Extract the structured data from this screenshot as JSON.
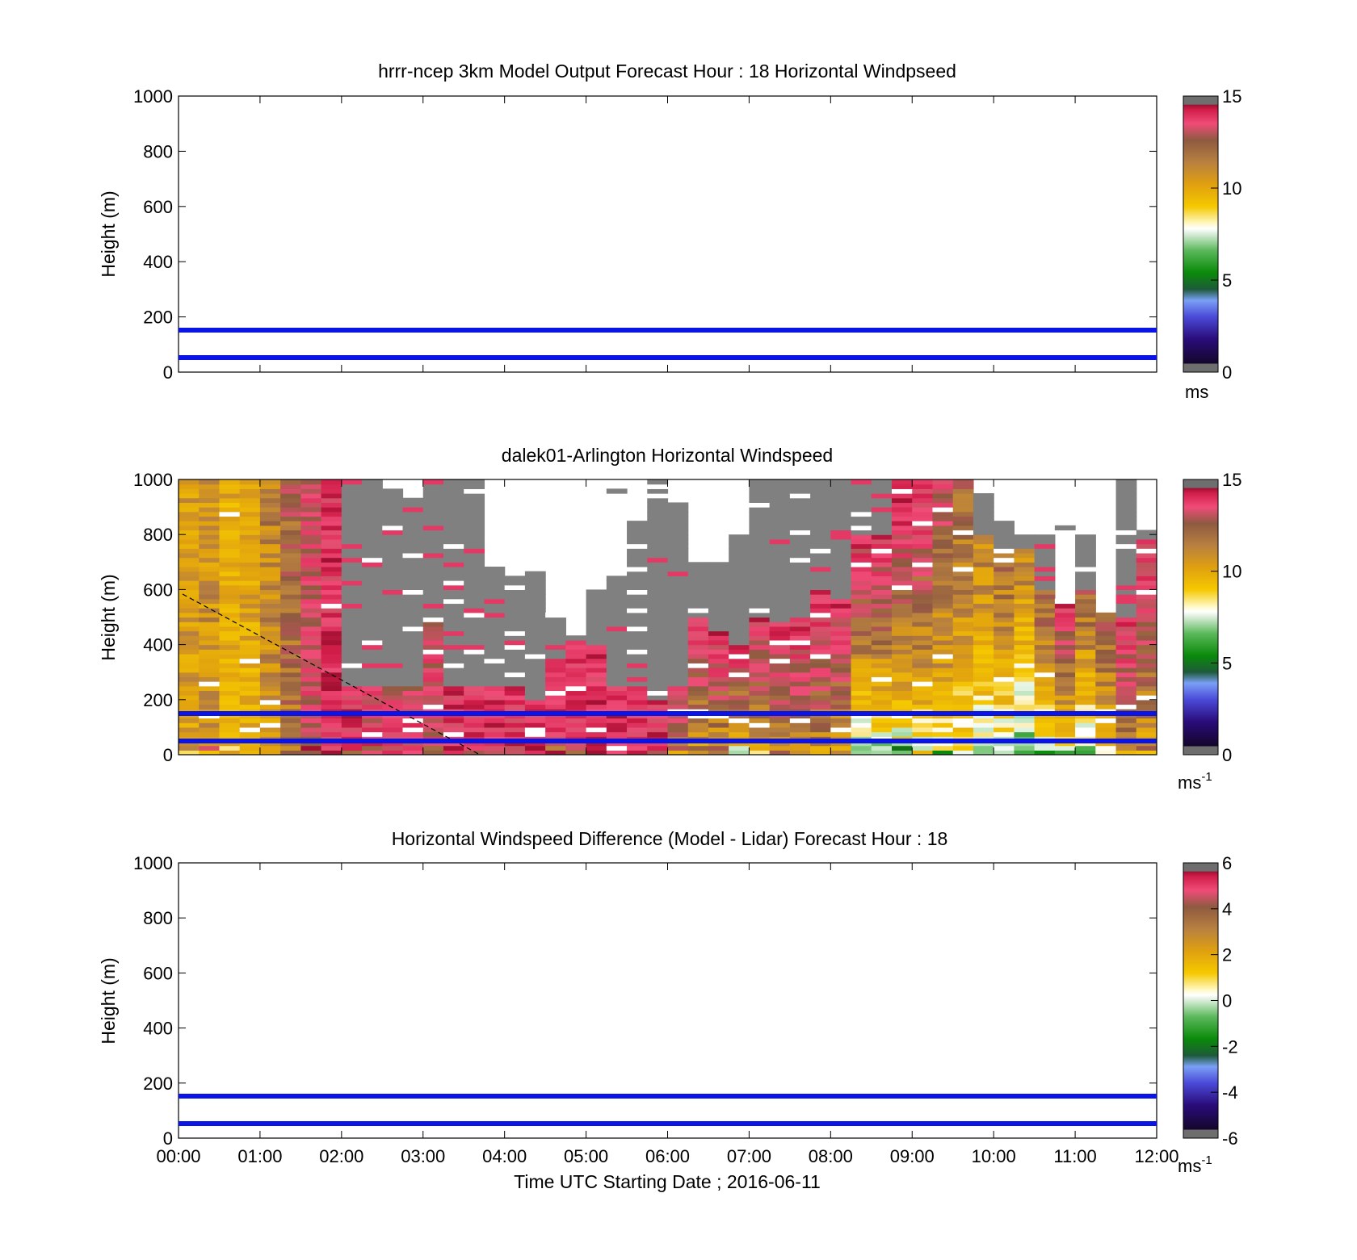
{
  "colors": {
    "guide_line": "#0a14e6",
    "missing": "#808080",
    "speed_colormap": [
      "#6e6e6e",
      "#1e0a3c",
      "#3a1aa8",
      "#6a8cf0",
      "#1a7a1a",
      "#0a8c0a",
      "#8fd08f",
      "#ffffff",
      "#f5c400",
      "#e0a000",
      "#c08a3a",
      "#8e5a40",
      "#f0507a",
      "#c0143c",
      "#6e6e6e"
    ]
  },
  "panels": [
    {
      "title": "hrrr-ncep 3km Model Output   Forecast Hour : 18 Horizontal Windpseed",
      "ylabel": "Height (m)",
      "yticks": [
        "0",
        "200",
        "400",
        "600",
        "800",
        "1000"
      ],
      "cbar_ticks": [
        "0",
        "5",
        "10",
        "15"
      ],
      "cbar_unit": "ms",
      "cbar_unit_sup": "",
      "has_data": false
    },
    {
      "title": "dalek01-Arlington  Horizontal Windspeed",
      "ylabel": "Height (m)",
      "yticks": [
        "0",
        "200",
        "400",
        "600",
        "800",
        "1000"
      ],
      "cbar_ticks": [
        "0",
        "5",
        "10",
        "15"
      ],
      "cbar_unit": "ms",
      "cbar_unit_sup": "-1",
      "has_data": true
    },
    {
      "title": "Horizontal Windspeed Difference (Model - Lidar) Forecast Hour : 18",
      "ylabel": "Height (m)",
      "yticks": [
        "0",
        "200",
        "400",
        "600",
        "800",
        "1000"
      ],
      "cbar_ticks": [
        "-6",
        "-4",
        "-2",
        "0",
        "2",
        "4",
        "6"
      ],
      "cbar_unit": "ms",
      "cbar_unit_sup": "-1",
      "has_data": false
    }
  ],
  "xaxis": {
    "ticks": [
      "00:00",
      "01:00",
      "02:00",
      "03:00",
      "04:00",
      "05:00",
      "06:00",
      "07:00",
      "08:00",
      "09:00",
      "10:00",
      "11:00",
      "12:00"
    ],
    "label": "Time UTC  Starting Date ; 2016-06-11"
  },
  "chart_data": [
    {
      "type": "heatmap",
      "title": "hrrr-ncep 3km Model Output   Forecast Hour : 18 Horizontal Windpseed",
      "ylabel": "Height (m)",
      "xlabel": "",
      "xlim": [
        "00:00",
        "12:00"
      ],
      "ylim": [
        0,
        1000
      ],
      "clim": [
        0,
        15
      ],
      "colorbar_label": "ms",
      "reference_lines_height_m": [
        150,
        50
      ],
      "values": []
    },
    {
      "type": "heatmap",
      "title": "dalek01-Arlington  Horizontal Windspeed",
      "ylabel": "Height (m)",
      "xlabel": "",
      "xlim": [
        "00:00",
        "12:00"
      ],
      "ylim": [
        0,
        1000
      ],
      "clim": [
        0,
        15
      ],
      "colorbar_label": "ms-1",
      "reference_lines_height_m": [
        150,
        50
      ],
      "dashed_line": {
        "x": [
          "00:00",
          "03:45"
        ],
        "y": [
          580,
          0
        ]
      },
      "x": [
        "00:07",
        "00:22",
        "00:37",
        "00:52",
        "01:07",
        "01:22",
        "01:37",
        "01:52",
        "02:07",
        "02:22",
        "02:37",
        "02:52",
        "03:07",
        "03:22",
        "03:37",
        "03:52",
        "04:07",
        "04:22",
        "04:37",
        "04:52",
        "05:07",
        "05:22",
        "05:37",
        "05:52",
        "06:07",
        "06:22",
        "06:37",
        "06:52",
        "07:07",
        "07:22",
        "07:37",
        "07:52",
        "08:07",
        "08:22",
        "08:37",
        "08:52",
        "09:07",
        "09:22",
        "09:37",
        "09:52",
        "10:07",
        "10:22",
        "10:37",
        "10:52",
        "11:07",
        "11:22",
        "11:37",
        "11:52"
      ],
      "column_top_of_valid_data_m": [
        1000,
        1000,
        1000,
        1000,
        1000,
        1000,
        1000,
        1000,
        250,
        250,
        250,
        250,
        500,
        250,
        250,
        250,
        250,
        200,
        350,
        420,
        400,
        250,
        250,
        200,
        250,
        500,
        450,
        400,
        500,
        480,
        500,
        600,
        560,
        800,
        800,
        1000,
        1000,
        1000,
        1000,
        800,
        750,
        750,
        600,
        560,
        600,
        520,
        500,
        780
      ],
      "column_top_of_retrievals_m": [
        1000,
        1000,
        1000,
        1000,
        1000,
        1000,
        1000,
        1000,
        1000,
        1000,
        960,
        940,
        1000,
        1000,
        1000,
        680,
        650,
        660,
        520,
        430,
        600,
        650,
        850,
        1000,
        920,
        700,
        700,
        800,
        1000,
        1000,
        1000,
        1000,
        1000,
        1000,
        1000,
        1000,
        1000,
        1000,
        1000,
        950,
        850,
        800,
        800,
        560,
        800,
        520,
        1000,
        820
      ],
      "column_mean_speed_near_surface": [
        10,
        10,
        9.5,
        9,
        10,
        11,
        13,
        14,
        14,
        14,
        13.5,
        13.5,
        13,
        14,
        14,
        14,
        14,
        14,
        13.5,
        14,
        14,
        14,
        13.5,
        14,
        9.5,
        9,
        9,
        7,
        8.5,
        10,
        9.5,
        10,
        9,
        5,
        5.5,
        6,
        6.5,
        7,
        7,
        6.5,
        6,
        5,
        6,
        6,
        5.5,
        8,
        9.5,
        9
      ],
      "column_mean_speed_upper": [
        10,
        10.5,
        9.5,
        10,
        11,
        12,
        13,
        14,
        14,
        13,
        13,
        13,
        13,
        14,
        14,
        14,
        14,
        14,
        14,
        14,
        14,
        14,
        14,
        14,
        14,
        14,
        14,
        14,
        14,
        14,
        14,
        14,
        14,
        14,
        14,
        14.5,
        14,
        13,
        12,
        11,
        12,
        11,
        12,
        14,
        12,
        12,
        14,
        14
      ]
    },
    {
      "type": "heatmap",
      "title": "Horizontal Windspeed Difference (Model - Lidar) Forecast Hour : 18",
      "ylabel": "Height (m)",
      "xlabel": "Time UTC  Starting Date ; 2016-06-11",
      "xlim": [
        "00:00",
        "12:00"
      ],
      "ylim": [
        0,
        1000
      ],
      "clim": [
        -6,
        6
      ],
      "colorbar_label": "ms-1",
      "reference_lines_height_m": [
        150,
        50
      ],
      "values": []
    }
  ]
}
